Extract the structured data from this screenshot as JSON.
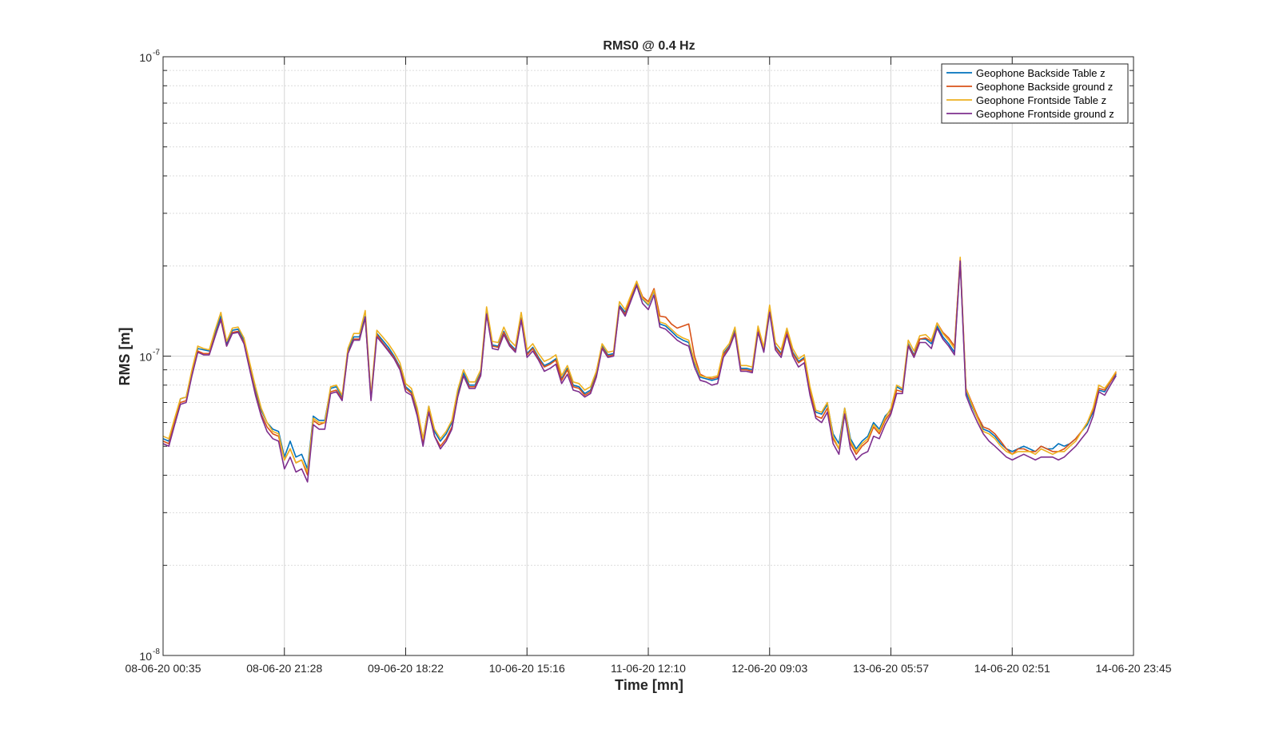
{
  "chart_data": {
    "type": "line",
    "title": "RMS0 @ 0.4 Hz",
    "xlabel": "Time [mn]",
    "ylabel": "RMS [m]",
    "y_scale": "log",
    "ylim": [
      1e-08,
      1e-06
    ],
    "y_ticks": [
      {
        "value": 1e-08,
        "base": "10",
        "exp": "-8"
      },
      {
        "value": 1e-07,
        "base": "10",
        "exp": "-7"
      },
      {
        "value": 1e-06,
        "base": "10",
        "exp": "-6"
      }
    ],
    "x_tick_labels": [
      "08-06-20 00:35",
      "08-06-20 21:28",
      "09-06-20 18:22",
      "10-06-20 15:16",
      "11-06-20 12:10",
      "12-06-20 09:03",
      "13-06-20 05:57",
      "14-06-20 02:51",
      "14-06-20 23:45"
    ],
    "grid": true,
    "legend_position": "top-right",
    "x_base": [
      0,
      1,
      2,
      3,
      4,
      5,
      6,
      7,
      8,
      9,
      10,
      11,
      12,
      13,
      14,
      15,
      16,
      17,
      18,
      19,
      20,
      21,
      22,
      23,
      24,
      25,
      26,
      27,
      28,
      29,
      30,
      31,
      32,
      33,
      34,
      35,
      36,
      37,
      38,
      39,
      40,
      41,
      42,
      43,
      44,
      45,
      46,
      47,
      48,
      49,
      50,
      51,
      52,
      53,
      54,
      55,
      56,
      57,
      58,
      59,
      60,
      61,
      62,
      63,
      64,
      65,
      66,
      67,
      68,
      69,
      70,
      71,
      72,
      73,
      74,
      75,
      76,
      77,
      78,
      79,
      80,
      81,
      82,
      83,
      84,
      85,
      86,
      87,
      88,
      89,
      90,
      91,
      92,
      93,
      94,
      95,
      96,
      97,
      98,
      99,
      100,
      101,
      102,
      103,
      104,
      105,
      106,
      107,
      108,
      109,
      110,
      111,
      112,
      113,
      114,
      115,
      116,
      117,
      118,
      119,
      120,
      121,
      122,
      123,
      124,
      125,
      126,
      127,
      128,
      129,
      130,
      131,
      132,
      133,
      134,
      135,
      136,
      137,
      138,
      139,
      140,
      141,
      142,
      143,
      144,
      145,
      146,
      147,
      148,
      149,
      150,
      151,
      152,
      153,
      154,
      155,
      156,
      157,
      158,
      159,
      160,
      161,
      162,
      163,
      164,
      165,
      166,
      167,
      168
    ],
    "x_span": 168,
    "series": [
      {
        "name": "Geophone Backside Table z",
        "color": "#0072BD",
        "values": [
          5.3,
          5.2,
          6.1,
          7.2,
          7.3,
          8.9,
          10.6,
          10.5,
          10.4,
          12.0,
          13.6,
          11.0,
          12.2,
          12.3,
          11.3,
          9.3,
          7.7,
          6.6,
          6.0,
          5.7,
          5.6,
          4.6,
          5.2,
          4.6,
          4.7,
          4.2,
          6.3,
          6.1,
          6.1,
          7.8,
          7.9,
          7.3,
          10.4,
          11.6,
          11.6,
          13.6,
          7.3,
          11.9,
          11.3,
          10.7,
          10.0,
          9.2,
          7.9,
          7.6,
          6.5,
          5.3,
          6.8,
          5.6,
          5.2,
          5.5,
          6.0,
          7.5,
          8.8,
          8.0,
          8.0,
          8.8,
          14.0,
          10.9,
          10.8,
          12.1,
          11.0,
          10.5,
          13.4,
          10.2,
          10.7,
          9.9,
          9.3,
          9.5,
          9.8,
          8.4,
          9.1,
          8.0,
          7.9,
          7.5,
          7.7,
          8.7,
          10.8,
          10.1,
          10.2,
          14.8,
          14.0,
          15.7,
          17.5,
          15.5,
          14.8,
          16.5,
          12.8,
          12.6,
          12.1,
          11.6,
          11.3,
          11.1,
          9.5,
          8.5,
          8.4,
          8.3,
          8.4,
          10.2,
          10.8,
          12.2,
          9.1,
          9.1,
          9.0,
          12.3,
          10.5,
          14.3,
          10.8,
          10.2,
          12.1,
          10.3,
          9.6,
          9.9,
          7.7,
          6.5,
          6.4,
          6.9,
          5.5,
          5.1,
          6.7,
          5.3,
          4.9,
          5.2,
          5.4,
          6.0,
          5.7,
          6.3,
          6.6,
          7.9,
          7.7,
          11.0,
          10.1,
          11.4,
          11.4,
          11.0,
          12.6,
          11.6,
          11.0,
          10.3,
          20.8,
          7.6,
          6.8,
          6.2,
          5.7,
          5.6,
          5.4,
          5.1,
          4.9,
          4.8,
          4.9,
          5.0,
          4.9,
          4.8,
          5.0,
          4.9,
          4.9,
          5.1,
          5.0,
          5.1,
          5.3,
          5.6,
          5.9,
          6.5,
          7.7,
          7.6,
          8.2,
          8.7
        ]
      },
      {
        "name": "Geophone Backside ground z",
        "color": "#D95319",
        "values": [
          5.2,
          5.1,
          6.0,
          7.0,
          7.1,
          8.7,
          10.4,
          10.2,
          10.2,
          11.7,
          13.2,
          10.8,
          12.0,
          12.1,
          11.1,
          9.1,
          7.5,
          6.4,
          5.8,
          5.5,
          5.4,
          4.5,
          4.9,
          4.4,
          4.5,
          4.0,
          6.1,
          5.9,
          6.0,
          7.6,
          7.7,
          7.2,
          10.2,
          11.4,
          11.4,
          13.4,
          7.2,
          11.8,
          11.1,
          10.5,
          9.9,
          9.1,
          7.8,
          7.5,
          6.4,
          5.1,
          6.6,
          5.4,
          5.0,
          5.3,
          5.8,
          7.3,
          8.6,
          7.9,
          7.9,
          8.7,
          13.8,
          10.8,
          10.7,
          12.0,
          10.9,
          10.4,
          13.3,
          10.1,
          10.6,
          9.8,
          9.2,
          9.4,
          9.7,
          8.3,
          9.0,
          7.9,
          7.8,
          7.4,
          7.6,
          8.6,
          10.7,
          10.0,
          10.1,
          14.6,
          13.8,
          15.8,
          17.7,
          15.8,
          15.2,
          16.8,
          13.6,
          13.5,
          12.8,
          12.4,
          12.6,
          12.8,
          10.0,
          8.7,
          8.5,
          8.4,
          8.5,
          10.1,
          10.7,
          12.0,
          9.0,
          9.0,
          8.9,
          12.2,
          10.4,
          14.2,
          10.7,
          10.1,
          12.0,
          10.2,
          9.5,
          9.8,
          7.6,
          6.3,
          6.2,
          6.7,
          5.3,
          4.9,
          6.5,
          5.1,
          4.7,
          5.0,
          5.2,
          5.8,
          5.5,
          6.1,
          6.5,
          7.7,
          7.6,
          10.9,
          10.0,
          11.4,
          11.5,
          11.2,
          12.9,
          12.0,
          11.5,
          10.8,
          21.0,
          7.8,
          7.0,
          6.3,
          5.8,
          5.7,
          5.5,
          5.2,
          4.9,
          4.7,
          4.9,
          4.9,
          4.8,
          4.8,
          5.0,
          4.9,
          4.8,
          4.8,
          4.9,
          5.1,
          5.3,
          5.6,
          6.0,
          6.6,
          7.8,
          7.7,
          8.2,
          8.8
        ]
      },
      {
        "name": "Geophone Frontside Table z",
        "color": "#EDB120",
        "values": [
          5.4,
          5.3,
          6.2,
          7.2,
          7.3,
          9.0,
          10.8,
          10.6,
          10.5,
          12.2,
          14.0,
          11.2,
          12.4,
          12.5,
          11.5,
          9.5,
          7.9,
          6.7,
          6.0,
          5.6,
          5.5,
          4.5,
          4.9,
          4.4,
          4.5,
          4.1,
          6.2,
          6.0,
          6.0,
          7.9,
          8.0,
          7.4,
          10.6,
          11.9,
          11.9,
          14.2,
          7.4,
          12.2,
          11.6,
          11.0,
          10.3,
          9.5,
          8.1,
          7.8,
          6.7,
          5.3,
          6.8,
          5.7,
          5.3,
          5.6,
          6.1,
          7.7,
          9.0,
          8.2,
          8.2,
          9.0,
          14.6,
          11.2,
          11.1,
          12.5,
          11.3,
          10.8,
          14.0,
          10.5,
          11.0,
          10.2,
          9.6,
          9.8,
          10.1,
          8.6,
          9.3,
          8.2,
          8.1,
          7.7,
          7.9,
          8.9,
          11.0,
          10.3,
          10.4,
          15.2,
          14.3,
          16.0,
          17.8,
          15.6,
          14.9,
          16.6,
          13.0,
          12.8,
          12.3,
          11.8,
          11.5,
          11.3,
          9.6,
          8.6,
          8.5,
          8.5,
          8.6,
          10.4,
          11.0,
          12.5,
          9.3,
          9.3,
          9.2,
          12.6,
          10.7,
          14.8,
          11.1,
          10.5,
          12.4,
          10.6,
          9.8,
          10.1,
          7.9,
          6.6,
          6.5,
          7.0,
          5.4,
          4.9,
          6.7,
          5.2,
          4.8,
          5.1,
          5.3,
          5.9,
          5.6,
          6.2,
          6.7,
          8.0,
          7.8,
          11.3,
          10.4,
          11.7,
          11.8,
          11.3,
          12.9,
          11.9,
          11.3,
          10.6,
          21.4,
          7.8,
          6.9,
          6.2,
          5.6,
          5.5,
          5.3,
          5.0,
          4.8,
          4.7,
          4.8,
          4.8,
          4.8,
          4.7,
          4.9,
          4.8,
          4.7,
          4.8,
          4.8,
          5.0,
          5.2,
          5.6,
          6.0,
          6.7,
          8.0,
          7.8,
          8.3,
          8.9
        ]
      },
      {
        "name": "Geophone Frontside ground z",
        "color": "#7E2F8E",
        "values": [
          5.1,
          5.0,
          5.9,
          6.9,
          7.0,
          8.6,
          10.3,
          10.1,
          10.1,
          11.6,
          13.3,
          10.8,
          11.9,
          12.0,
          11.0,
          9.0,
          7.4,
          6.3,
          5.6,
          5.3,
          5.2,
          4.2,
          4.6,
          4.1,
          4.2,
          3.8,
          5.9,
          5.7,
          5.7,
          7.5,
          7.6,
          7.1,
          10.2,
          11.3,
          11.3,
          13.5,
          7.1,
          11.6,
          11.0,
          10.4,
          9.8,
          9.0,
          7.6,
          7.4,
          6.3,
          5.0,
          6.5,
          5.4,
          4.9,
          5.2,
          5.7,
          7.3,
          8.6,
          7.8,
          7.8,
          8.6,
          13.8,
          10.6,
          10.5,
          11.8,
          10.8,
          10.3,
          13.2,
          9.9,
          10.4,
          9.7,
          8.9,
          9.1,
          9.4,
          8.1,
          8.7,
          7.7,
          7.6,
          7.3,
          7.5,
          8.5,
          10.6,
          9.9,
          10.0,
          14.6,
          13.6,
          15.3,
          17.2,
          15.0,
          14.3,
          16.0,
          12.5,
          12.3,
          11.8,
          11.3,
          11.0,
          10.8,
          9.2,
          8.3,
          8.2,
          8.0,
          8.1,
          9.9,
          10.6,
          11.9,
          8.9,
          8.9,
          8.8,
          12.0,
          10.3,
          14.0,
          10.5,
          9.9,
          11.8,
          10.0,
          9.2,
          9.5,
          7.4,
          6.2,
          6.0,
          6.5,
          5.1,
          4.7,
          6.4,
          4.9,
          4.5,
          4.7,
          4.8,
          5.4,
          5.3,
          5.9,
          6.4,
          7.5,
          7.5,
          10.8,
          9.9,
          11.1,
          11.1,
          10.6,
          12.4,
          11.4,
          10.8,
          10.1,
          20.8,
          7.4,
          6.6,
          6.0,
          5.5,
          5.2,
          5.0,
          4.8,
          4.6,
          4.5,
          4.6,
          4.7,
          4.6,
          4.5,
          4.6,
          4.6,
          4.6,
          4.5,
          4.6,
          4.8,
          5.0,
          5.3,
          5.6,
          6.3,
          7.6,
          7.4,
          8.0,
          8.6
        ]
      }
    ]
  }
}
